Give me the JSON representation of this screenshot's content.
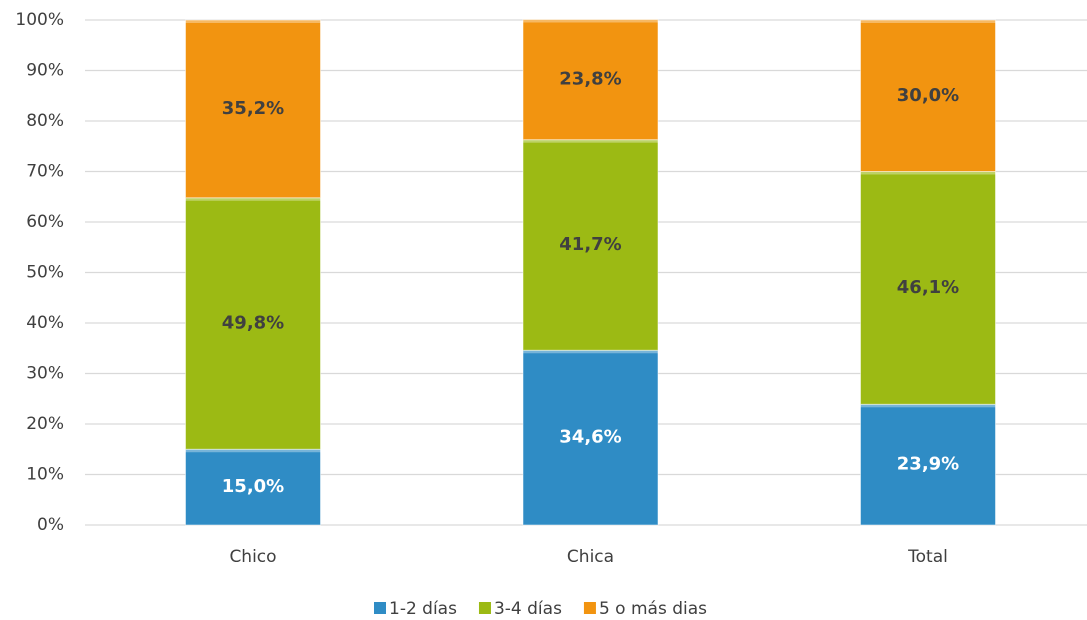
{
  "chart_data": {
    "type": "stacked_bar",
    "categories": [
      "Chico",
      "Chica",
      "Total"
    ],
    "series": [
      {
        "name": "1-2 días",
        "color": "#2f8cc5",
        "values": [
          15.0,
          34.6,
          23.9
        ],
        "value_labels": [
          "15,0%",
          "34,6%",
          "23,9%"
        ]
      },
      {
        "name": "3-4 días",
        "color": "#9cba14",
        "values": [
          49.8,
          41.7,
          46.1
        ],
        "value_labels": [
          "49,8%",
          "41,7%",
          "46,1%"
        ]
      },
      {
        "name": "5 o más dias",
        "color": "#f29410",
        "values": [
          35.2,
          23.8,
          30.0
        ],
        "value_labels": [
          "35,2%",
          "23,8%",
          "30,0%"
        ]
      }
    ],
    "ylim": [
      0,
      100
    ],
    "yticks": [
      {
        "value": 0,
        "label": "0%"
      },
      {
        "value": 10,
        "label": "10%"
      },
      {
        "value": 20,
        "label": "20%"
      },
      {
        "value": 30,
        "label": "30%"
      },
      {
        "value": 40,
        "label": "40%"
      },
      {
        "value": 50,
        "label": "50%"
      },
      {
        "value": 60,
        "label": "60%"
      },
      {
        "value": 70,
        "label": "70%"
      },
      {
        "value": 80,
        "label": "80%"
      },
      {
        "value": 90,
        "label": "90%"
      },
      {
        "value": 100,
        "label": "100%"
      }
    ],
    "grid": true,
    "legend": "bottom"
  }
}
